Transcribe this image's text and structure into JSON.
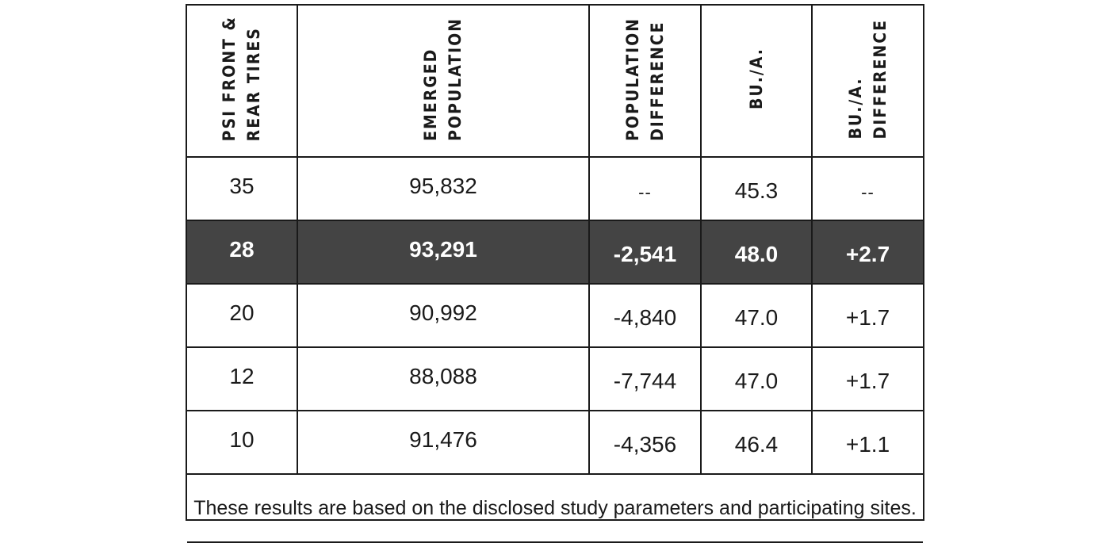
{
  "table": {
    "headers": [
      "PSI FRONT &\nREAR TIRES",
      "EMERGED\nPOPULATION",
      "POPULATION\nDIFFERENCE",
      "BU./A.",
      "BU./A.\nDIFFERENCE"
    ],
    "rows": [
      {
        "psi": "35",
        "emerged_population": "95,832",
        "population_difference": "--",
        "bu_a": "45.3",
        "bu_a_difference": "--",
        "highlighted": false
      },
      {
        "psi": "28",
        "emerged_population": "93,291",
        "population_difference": "-2,541",
        "bu_a": "48.0",
        "bu_a_difference": "+2.7",
        "highlighted": true
      },
      {
        "psi": "20",
        "emerged_population": "90,992",
        "population_difference": "-4,840",
        "bu_a": "47.0",
        "bu_a_difference": "+1.7",
        "highlighted": false
      },
      {
        "psi": "12",
        "emerged_population": "88,088",
        "population_difference": "-7,744",
        "bu_a": "47.0",
        "bu_a_difference": "+1.7",
        "highlighted": false
      },
      {
        "psi": "10",
        "emerged_population": "91,476",
        "population_difference": "-4,356",
        "bu_a": "46.4",
        "bu_a_difference": "+1.1",
        "highlighted": false
      }
    ],
    "footnote": "These results are based on the disclosed study parameters and participating sites."
  },
  "colors": {
    "highlight_row_background": "#444444",
    "highlight_row_text": "#ffffff",
    "border": "#1a1a1a"
  }
}
